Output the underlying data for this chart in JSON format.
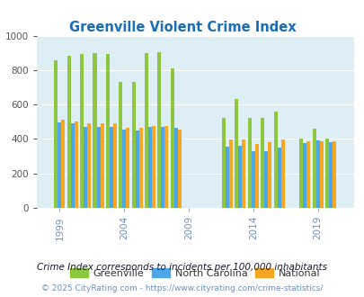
{
  "title": "Greenville Violent Crime Index",
  "subtitle": "Crime Index corresponds to incidents per 100,000 inhabitants",
  "footer": "© 2025 CityRating.com - https://www.cityrating.com/crime-statistics/",
  "years": [
    1999,
    2000,
    2001,
    2002,
    2003,
    2004,
    2005,
    2006,
    2007,
    2008,
    2012,
    2013,
    2014,
    2015,
    2016,
    2018,
    2019,
    2020
  ],
  "greenville": [
    855,
    885,
    895,
    900,
    895,
    730,
    730,
    900,
    905,
    810,
    520,
    630,
    520,
    520,
    560,
    400,
    460,
    400
  ],
  "nc": [
    495,
    490,
    470,
    470,
    470,
    455,
    450,
    470,
    470,
    465,
    355,
    360,
    330,
    330,
    350,
    375,
    390,
    380
  ],
  "national": [
    510,
    500,
    490,
    490,
    490,
    465,
    465,
    475,
    475,
    455,
    395,
    395,
    370,
    380,
    395,
    385,
    385,
    385
  ],
  "bar_width": 0.28,
  "ylim": [
    0,
    1000
  ],
  "yticks": [
    0,
    200,
    400,
    600,
    800,
    1000
  ],
  "colors": {
    "greenville": "#8dc63f",
    "nc": "#4da6e8",
    "national": "#f5a623",
    "plot_bg": "#ddeef5",
    "title": "#1a6db5",
    "grid": "#ffffff",
    "subtitle": "#1a1a2e",
    "footer": "#7090c0"
  },
  "tick_label_years": [
    1999,
    2004,
    2009,
    2014,
    2019
  ],
  "xlim": [
    1997.2,
    2021.8
  ]
}
